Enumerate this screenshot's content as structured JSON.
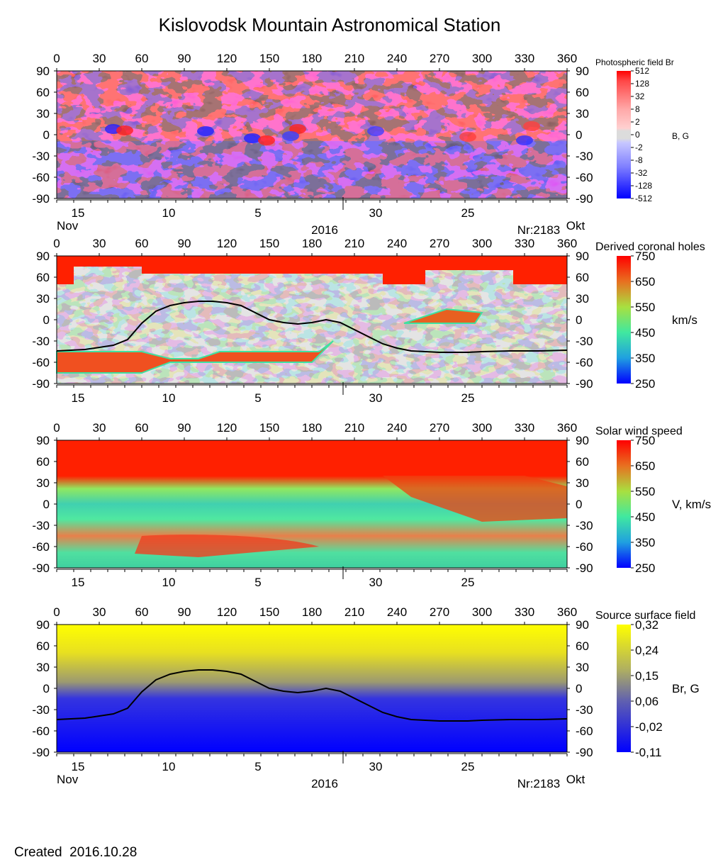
{
  "title": "Kislovodsk Mountain Astronomical Station",
  "footer": {
    "created_label": "Created",
    "created_date": "2016.10.28"
  },
  "colors": {
    "field_positive": "#ff0000",
    "field_negative": "#0000ff",
    "coronal_hole_fill_high": "#ff0000",
    "coronal_hole_background": "#a8a8a8",
    "source_surface_high": "#ffff00",
    "source_surface_low": "#0000ff",
    "neutral_line": "#000000"
  },
  "chart_data": [
    {
      "type": "heatmap",
      "name": "photospheric-field",
      "title": "Photospheric field Br",
      "unit_label": "B, G",
      "x_ticks": [
        "0",
        "30",
        "60",
        "90",
        "120",
        "150",
        "180",
        "210",
        "240",
        "270",
        "300",
        "330",
        "360"
      ],
      "y_ticks": [
        "90",
        "60",
        "30",
        "0",
        "-30",
        "-60",
        "-90"
      ],
      "xlim": [
        0,
        360
      ],
      "ylim": [
        -90,
        90
      ],
      "date_labels": [
        "15",
        "10",
        "5",
        "30",
        "25"
      ],
      "month_left": "Nov",
      "year": "2016",
      "rotation": "Nr:2183",
      "month_right": "Okt",
      "colorbar": {
        "labels": [
          "512",
          "128",
          "32",
          "8",
          "2",
          "0",
          "-2",
          "-8",
          "-32",
          "-128",
          "-512"
        ]
      }
    },
    {
      "type": "heatmap",
      "name": "derived-coronal-holes",
      "title": "Derived coronal holes",
      "unit_label": "km/s",
      "x_ticks": [
        "0",
        "30",
        "60",
        "90",
        "120",
        "150",
        "180",
        "210",
        "240",
        "270",
        "300",
        "330",
        "360"
      ],
      "y_ticks": [
        "90",
        "60",
        "30",
        "0",
        "-30",
        "-60",
        "-90"
      ],
      "xlim": [
        0,
        360
      ],
      "ylim": [
        -90,
        90
      ],
      "date_labels": [
        "15",
        "10",
        "5",
        "30",
        "25"
      ],
      "colorbar": {
        "labels": [
          "750",
          "650",
          "550",
          "450",
          "350",
          "250"
        ]
      },
      "neutral_line": {
        "lon": [
          0,
          20,
          40,
          50,
          60,
          70,
          80,
          90,
          100,
          110,
          120,
          130,
          140,
          150,
          160,
          170,
          180,
          190,
          200,
          210,
          220,
          230,
          240,
          250,
          260,
          270,
          280,
          290,
          300,
          320,
          340,
          360
        ],
        "lat": [
          -44,
          -42,
          -36,
          -28,
          -5,
          12,
          20,
          24,
          26,
          26,
          24,
          20,
          10,
          0,
          -4,
          -6,
          -4,
          0,
          -4,
          -14,
          -24,
          -34,
          -40,
          -44,
          -45,
          -46,
          -46,
          -46,
          -45,
          -44,
          -44,
          -43
        ]
      }
    },
    {
      "type": "heatmap",
      "name": "solar-wind-speed",
      "title": "Solar wind speed",
      "unit_label": "V, km/s",
      "x_ticks": [
        "0",
        "30",
        "60",
        "90",
        "120",
        "150",
        "180",
        "210",
        "240",
        "270",
        "300",
        "330",
        "360"
      ],
      "y_ticks": [
        "90",
        "60",
        "30",
        "0",
        "-30",
        "-60",
        "-90"
      ],
      "xlim": [
        0,
        360
      ],
      "ylim": [
        -90,
        90
      ],
      "date_labels": [
        "15",
        "10",
        "5",
        "30",
        "25"
      ],
      "colorbar": {
        "labels": [
          "750",
          "650",
          "550",
          "450",
          "350",
          "250"
        ]
      }
    },
    {
      "type": "heatmap",
      "name": "source-surface-field",
      "title": "Source surface field",
      "unit_label": "Br, G",
      "x_ticks": [
        "0",
        "30",
        "60",
        "90",
        "120",
        "150",
        "180",
        "210",
        "240",
        "270",
        "300",
        "330",
        "360"
      ],
      "y_ticks": [
        "90",
        "60",
        "30",
        "0",
        "-30",
        "-60",
        "-90"
      ],
      "xlim": [
        0,
        360
      ],
      "ylim": [
        -90,
        90
      ],
      "date_labels": [
        "15",
        "10",
        "5",
        "30",
        "25"
      ],
      "month_left": "Nov",
      "year": "2016",
      "rotation": "Nr:2183",
      "month_right": "Okt",
      "colorbar": {
        "labels": [
          "0,32",
          "0,24",
          "0,15",
          "0,06",
          "-0,02",
          "-0,11"
        ]
      },
      "neutral_line": {
        "lon": [
          0,
          20,
          40,
          50,
          60,
          70,
          80,
          90,
          100,
          110,
          120,
          130,
          140,
          150,
          160,
          170,
          180,
          190,
          200,
          210,
          220,
          230,
          240,
          250,
          260,
          270,
          280,
          290,
          300,
          320,
          340,
          360
        ],
        "lat": [
          -44,
          -42,
          -36,
          -28,
          -5,
          12,
          20,
          24,
          26,
          26,
          24,
          20,
          10,
          0,
          -4,
          -6,
          -4,
          0,
          -4,
          -14,
          -24,
          -34,
          -40,
          -44,
          -45,
          -46,
          -46,
          -46,
          -45,
          -44,
          -44,
          -43
        ]
      }
    }
  ]
}
